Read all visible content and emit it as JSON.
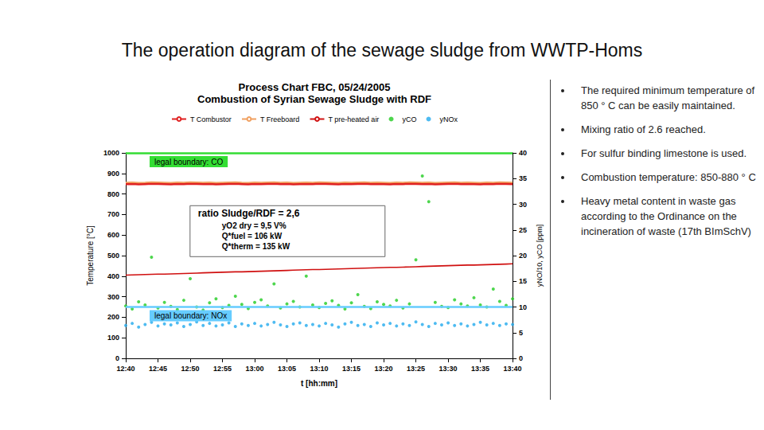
{
  "slide": {
    "title": "The operation diagram of the sewage sludge from WWTP-Homs",
    "bullets": [
      "The required minimum temperature of 850 ° C can be easily maintained.",
      "Mixing ratio of 2.6 reached.",
      "For sulfur binding limestone is used.",
      "Combustion temperature: 850-880 ° C",
      "Heavy metal content in waste gas according to the Ordinance on the incineration of waste (17th BImSchV)"
    ]
  },
  "chart_data": {
    "type": "line",
    "title": "Process Chart FBC, 05/24/2005",
    "subtitle": "Combustion of Syrian Sewage Sludge with RDF",
    "x_label": "t [hh:mm]",
    "y_label": "Temperature [°C]",
    "y2_label": "yNO/10, yCO [ppm]",
    "categories": [
      "12:40",
      null,
      null,
      null,
      null,
      "12:45",
      null,
      null,
      null,
      null,
      "12:50",
      null,
      null,
      null,
      null,
      "12:55",
      null,
      null,
      null,
      null,
      "13:00",
      null,
      null,
      null,
      null,
      "13:05",
      null,
      null,
      null,
      null,
      "13:10",
      null,
      null,
      null,
      null,
      "13:15",
      null,
      null,
      null,
      null,
      "13:20",
      null,
      null,
      null,
      null,
      "13:25",
      null,
      null,
      null,
      null,
      "13:30",
      null,
      null,
      null,
      null,
      "13:35",
      null,
      null,
      null,
      null,
      "13:40"
    ],
    "ylim": [
      0,
      1000
    ],
    "yticks": [
      0,
      100,
      200,
      300,
      400,
      500,
      600,
      700,
      800,
      900,
      1000
    ],
    "y2lim": [
      0,
      40
    ],
    "y2ticks": [
      0,
      5,
      10,
      15,
      20,
      25,
      30,
      35,
      40
    ],
    "grid": false,
    "legend": "top",
    "series": [
      {
        "name": "T Combustor",
        "type": "line",
        "line_style": "solid",
        "color": "#e02020",
        "values": [
          850,
          851,
          849,
          850,
          852,
          851,
          850,
          849,
          851,
          850,
          852,
          851,
          850,
          851,
          849,
          850,
          851,
          852,
          850,
          849,
          851,
          850,
          851,
          852,
          850,
          851,
          849,
          850,
          851,
          850,
          852,
          851,
          850,
          849,
          851,
          850,
          851,
          852,
          850,
          851,
          850,
          849,
          851,
          850,
          852,
          851,
          850,
          851,
          849,
          850,
          851,
          852,
          850,
          851,
          850,
          849,
          851,
          850,
          852,
          851,
          850
        ]
      },
      {
        "name": "T Freeboard",
        "type": "line",
        "line_style": "solid",
        "color": "#f0a060",
        "values": [
          856,
          857,
          855,
          856,
          858,
          857,
          856,
          855,
          857,
          856,
          858,
          857,
          856,
          857,
          855,
          856,
          857,
          858,
          856,
          855,
          857,
          856,
          857,
          858,
          856,
          857,
          855,
          856,
          857,
          856,
          858,
          857,
          856,
          855,
          857,
          856,
          857,
          858,
          856,
          857,
          856,
          855,
          857,
          856,
          858,
          857,
          856,
          857,
          855,
          856,
          857,
          858,
          856,
          857,
          856,
          855,
          857,
          856,
          858,
          857,
          856
        ]
      },
      {
        "name": "T pre-heated air",
        "type": "line",
        "line_style": "solid",
        "color": "#d01010",
        "values": [
          405,
          406,
          407,
          408,
          409,
          410,
          410,
          411,
          412,
          413,
          414,
          415,
          416,
          417,
          418,
          419,
          420,
          421,
          421,
          422,
          423,
          424,
          425,
          426,
          427,
          428,
          429,
          430,
          431,
          432,
          432,
          433,
          434,
          435,
          436,
          437,
          438,
          439,
          440,
          441,
          442,
          443,
          443,
          444,
          445,
          446,
          447,
          448,
          449,
          450,
          451,
          452,
          453,
          454,
          454,
          455,
          456,
          457,
          458,
          459,
          460
        ]
      },
      {
        "name": "yCO",
        "type": "scatter",
        "marker": "circle",
        "axis": "y2",
        "color": "#22cc22",
        "values": [
          10.2,
          9.6,
          11.0,
          10.4,
          19.7,
          9.8,
          10.9,
          10.1,
          9.5,
          11.3,
          15.5,
          10.0,
          9.4,
          10.8,
          11.6,
          9.9,
          10.3,
          12.1,
          10.5,
          9.7,
          10.9,
          11.4,
          10.2,
          14.5,
          9.8,
          10.6,
          11.1,
          10.0,
          16.0,
          10.4,
          9.9,
          10.7,
          11.2,
          10.3,
          9.6,
          10.8,
          12.4,
          10.1,
          9.7,
          11.0,
          10.5,
          10.2,
          11.3,
          9.8,
          10.6,
          19.2,
          35.5,
          30.5,
          10.9,
          10.1,
          9.9,
          11.4,
          10.6,
          10.2,
          11.8,
          10.4,
          10.0,
          13.5,
          11.1,
          10.3,
          11.6
        ]
      },
      {
        "name": "yNOx",
        "type": "scatter",
        "marker": "circle",
        "axis": "y2",
        "color": "#22aaee",
        "values": [
          6.4,
          6.8,
          6.1,
          6.6,
          7.0,
          6.3,
          6.7,
          6.5,
          6.9,
          6.2,
          6.6,
          7.1,
          6.4,
          6.8,
          6.3,
          6.5,
          6.9,
          6.2,
          6.7,
          6.4,
          6.8,
          6.3,
          6.6,
          7.0,
          6.5,
          6.2,
          6.7,
          6.9,
          6.4,
          6.6,
          6.3,
          6.8,
          6.5,
          6.1,
          6.7,
          7.0,
          6.4,
          6.6,
          6.2,
          6.9,
          6.5,
          6.8,
          6.3,
          6.7,
          6.4,
          7.1,
          6.6,
          6.2,
          6.8,
          6.5,
          6.9,
          6.4,
          6.7,
          6.3,
          6.6,
          7.0,
          6.5,
          6.8,
          6.4,
          6.7,
          6.6
        ]
      }
    ],
    "annotations": [
      {
        "text": "legal boundary: CO",
        "y2": 40,
        "color": "#33dd33"
      },
      {
        "text": "legal boundary: NOx",
        "y2": 10,
        "color": "#66ccff"
      }
    ],
    "info_box": [
      "ratio Sludge/RDF = 2,6",
      "yO2 dry = 9,5 V%",
      "Q*fuel = 106 kW",
      "Q*therm = 135 kW"
    ]
  }
}
